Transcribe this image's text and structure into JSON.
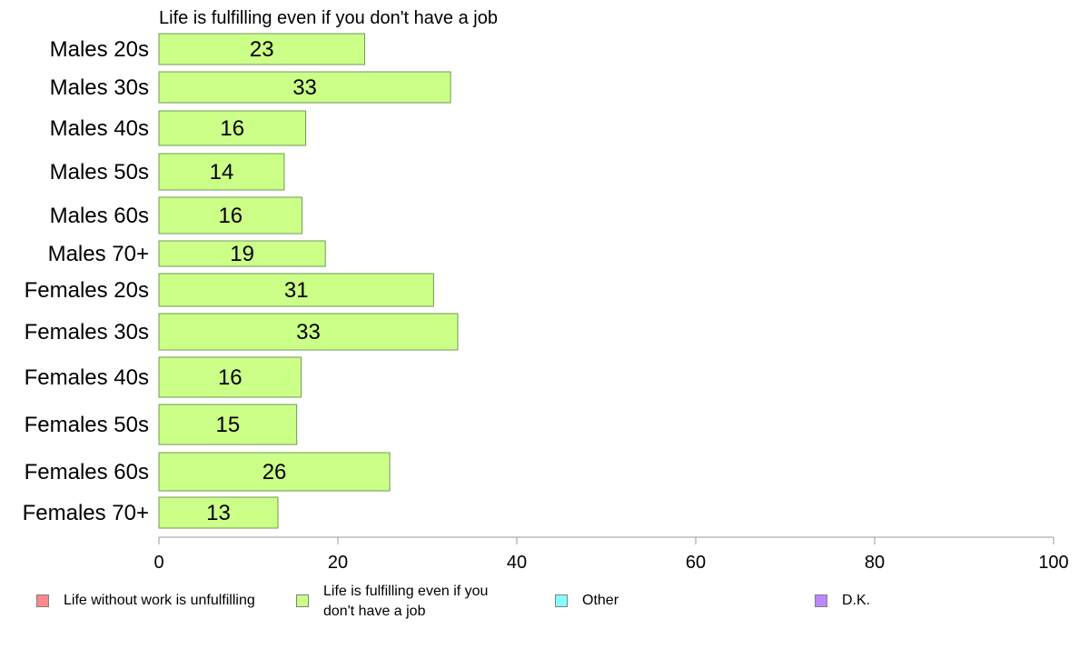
{
  "chart_data": {
    "type": "bar",
    "orientation": "horizontal",
    "title": "Life is fulfilling even if you don't have a job",
    "categories": [
      "Males 20s",
      "Males 30s",
      "Males 40s",
      "Males 50s",
      "Males 60s",
      "Males 70+",
      "Females 20s",
      "Females 30s",
      "Females 40s",
      "Females 50s",
      "Females 60s",
      "Females 70+"
    ],
    "series": [
      {
        "name": "Life is fulfilling even if you don't have a job",
        "values": [
          23,
          33,
          16,
          14,
          16,
          19,
          31,
          33,
          16,
          15,
          26,
          13
        ],
        "display_values": [
          23,
          32.6,
          16.4,
          14,
          16,
          18.6,
          30.7,
          33.4,
          15.9,
          15.4,
          25.8,
          13.3
        ],
        "color": "#ccff88"
      }
    ],
    "xlim": [
      0,
      100
    ],
    "xticks": [
      0,
      20,
      40,
      60,
      80,
      100
    ],
    "xlabel": "",
    "ylabel": "",
    "grid": false,
    "legend_position": "bottom",
    "legend": [
      {
        "label": "Life without work is unfulfilling",
        "color": "#ff8888"
      },
      {
        "label": "Life is fulfilling even if you don't have a job",
        "color": "#ccff88"
      },
      {
        "label": "Other",
        "color": "#88ffff"
      },
      {
        "label": "D.K.",
        "color": "#bb88ff"
      }
    ]
  }
}
